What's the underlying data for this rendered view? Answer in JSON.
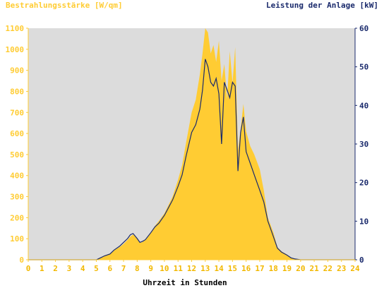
{
  "colors": {
    "irradiance": "#ffcc33",
    "power": "#1a2a6c",
    "plot_bg": "#dcdcdc",
    "axis_left_text": "#ffcc33",
    "axis_right_text": "#1a2a6c",
    "x_tick_text": "#f2b800"
  },
  "chart_data": {
    "type": "area",
    "title_left": "Bestrahlungsstärke [W/qm]",
    "title_right": "Leistung der Anlage [kW]",
    "xlabel": "Uhrzeit in Stunden",
    "xlim": [
      0,
      24
    ],
    "x_ticks": [
      "0",
      "1",
      "2",
      "3",
      "4",
      "5",
      "6",
      "7",
      "8",
      "9",
      "10",
      "11",
      "12",
      "13",
      "14",
      "15",
      "16",
      "17",
      "18",
      "19",
      "20",
      "21",
      "22",
      "23",
      "24"
    ],
    "y_left_lim": [
      0,
      1100
    ],
    "y_left_ticks": [
      "0",
      "100",
      "200",
      "300",
      "400",
      "500",
      "600",
      "700",
      "800",
      "900",
      "1000",
      "1100"
    ],
    "y_right_lim": [
      0,
      60
    ],
    "y_right_ticks": [
      "0",
      "10",
      "20",
      "30",
      "40",
      "50",
      "60"
    ],
    "grid": false,
    "series": [
      {
        "axis": "left",
        "style": "area",
        "x": [
          0,
          5.0,
          5.3,
          5.6,
          6.0,
          6.3,
          6.7,
          7.0,
          7.3,
          7.5,
          7.7,
          8.0,
          8.2,
          8.4,
          8.6,
          9.0,
          9.3,
          9.6,
          10.0,
          10.3,
          10.6,
          11.0,
          11.3,
          11.6,
          12.0,
          12.3,
          12.6,
          12.8,
          13.0,
          13.2,
          13.4,
          13.6,
          13.8,
          14.0,
          14.2,
          14.4,
          14.6,
          14.8,
          15.0,
          15.2,
          15.4,
          15.6,
          15.8,
          16.0,
          16.3,
          16.6,
          17.0,
          17.3,
          17.6,
          18.0,
          18.3,
          18.6,
          19.0,
          19.3,
          19.6,
          20.0,
          20.5,
          21.0,
          24.0
        ],
        "values": [
          0,
          0,
          10,
          20,
          30,
          45,
          60,
          75,
          95,
          110,
          120,
          105,
          80,
          85,
          95,
          130,
          160,
          185,
          220,
          260,
          300,
          380,
          450,
          560,
          700,
          760,
          880,
          980,
          1100,
          1080,
          980,
          1020,
          940,
          1040,
          850,
          930,
          760,
          990,
          840,
          1010,
          520,
          620,
          740,
          610,
          540,
          500,
          430,
          330,
          200,
          130,
          60,
          40,
          25,
          10,
          5,
          0,
          0,
          0,
          0
        ]
      },
      {
        "axis": "right",
        "style": "line",
        "x": [
          0,
          5.0,
          5.3,
          5.6,
          6.0,
          6.3,
          6.7,
          7.0,
          7.3,
          7.5,
          7.7,
          8.0,
          8.2,
          8.4,
          8.6,
          9.0,
          9.3,
          9.6,
          10.0,
          10.3,
          10.6,
          11.0,
          11.3,
          11.6,
          12.0,
          12.3,
          12.6,
          12.8,
          13.0,
          13.2,
          13.4,
          13.6,
          13.8,
          14.0,
          14.2,
          14.4,
          14.6,
          14.8,
          15.0,
          15.2,
          15.4,
          15.6,
          15.8,
          16.0,
          16.3,
          16.6,
          17.0,
          17.3,
          17.6,
          18.0,
          18.3,
          18.6,
          19.0,
          19.3,
          19.6,
          20.0,
          20.5,
          21.0,
          24.0
        ],
        "values": [
          0,
          0,
          0.5,
          1,
          1.5,
          2.5,
          3.5,
          4.5,
          5.5,
          6.5,
          6.8,
          5.5,
          4.5,
          4.8,
          5.2,
          7,
          8.5,
          9.5,
          11.5,
          13.5,
          15.5,
          19,
          22,
          27,
          33,
          35,
          39,
          44,
          52,
          50,
          46,
          45,
          47,
          43,
          30,
          46,
          44,
          42,
          46,
          45,
          23,
          33,
          37,
          28,
          25,
          22,
          18,
          15,
          10,
          6,
          3,
          2,
          1.2,
          0.5,
          0.2,
          0,
          0,
          0,
          0
        ]
      }
    ]
  }
}
